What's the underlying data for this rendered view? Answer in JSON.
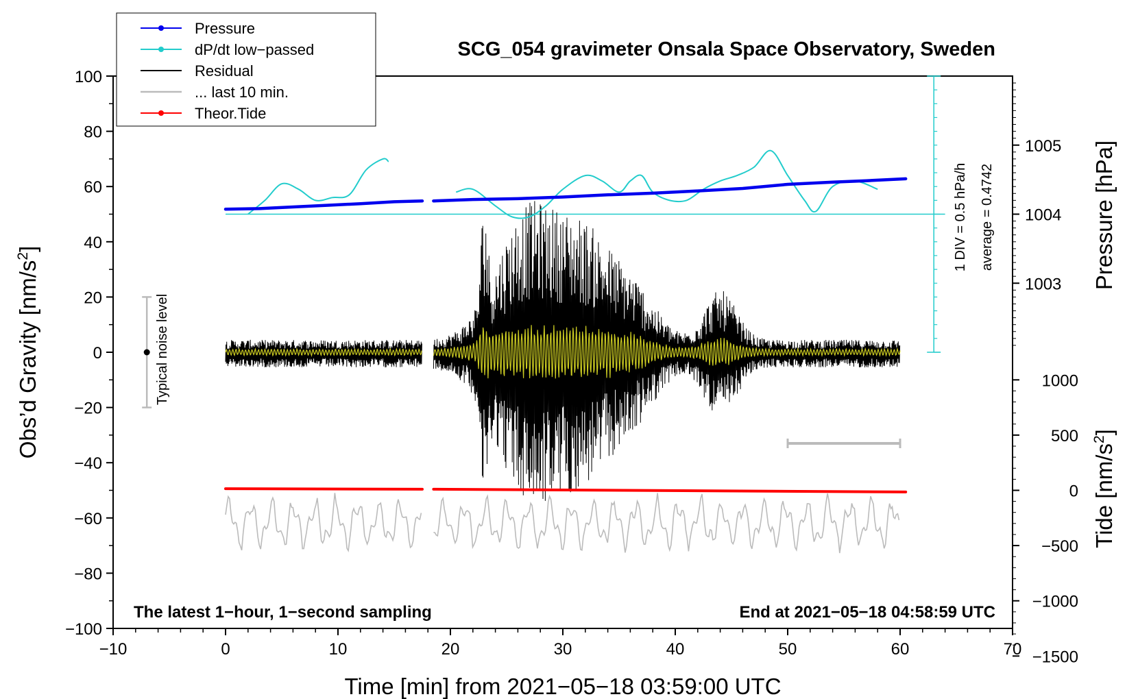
{
  "colors": {
    "pressure": "#0000ee",
    "dpdt": "#22cccc",
    "residual": "#000000",
    "last10": "#bbbbbb",
    "tide": "#ff0000",
    "smoothed": "#cccc22",
    "noise_bar": "#bbbbbb"
  },
  "chart_data": {
    "type": "line",
    "title": "SCG_054 gravimeter Onsala Space Observatory, Sweden",
    "xlabel": "Time [min] from 2021−05−18 03:59:00 UTC",
    "ylabel": "Obs’d Gravity [nm/s",
    "ylabel_sup": "2",
    "ylabel_end": "]",
    "right_top_label": "Pressure [hPa]",
    "right_bottom_label": "Tide [nm/s",
    "right_bottom_label_sup": "2",
    "right_bottom_label_end": "]",
    "xlim": [
      -10,
      70
    ],
    "ylim": [
      -100,
      100
    ],
    "x_ticks": [
      -10,
      0,
      10,
      20,
      30,
      40,
      50,
      60,
      70
    ],
    "x_tick_labels": [
      "−10",
      "0",
      "10",
      "20",
      "30",
      "40",
      "50",
      "60",
      "70"
    ],
    "y_ticks": [
      -100,
      -80,
      -60,
      -40,
      -20,
      0,
      20,
      40,
      60,
      80,
      100
    ],
    "y_tick_labels": [
      "−100",
      "−80",
      "−60",
      "−40",
      "−20",
      "0",
      "20",
      "40",
      "60",
      "80",
      "100"
    ],
    "pressure_axis": {
      "ticks": [
        1003,
        1004,
        1005
      ],
      "tick_labels": [
        "1003",
        "1004",
        "1005"
      ],
      "gravity_at_1004": 50,
      "gravity_per_hpa": 25
    },
    "tide_axis": {
      "ticks": [
        -1500,
        -1000,
        -500,
        0,
        500,
        1000
      ],
      "tick_labels": [
        "−1500",
        "−1000",
        "−500",
        "0",
        "500",
        "1000"
      ],
      "gravity_at_zero": -50,
      "gravity_per_unit": 0.04
    },
    "legend": [
      {
        "label": "Pressure",
        "series": "pressure",
        "marker": true
      },
      {
        "label": "dP/dt low−passed",
        "series": "dpdt",
        "marker": true
      },
      {
        "label": "Residual",
        "series": "residual",
        "marker": false
      },
      {
        "label": "... last 10 min.",
        "series": "last10",
        "marker": false
      },
      {
        "label": "Theor.Tide",
        "series": "tide",
        "marker": true
      }
    ],
    "annotations": {
      "noise_label": "Typical noise level",
      "noise_range": [
        -20,
        20
      ],
      "noise_x": -7,
      "div_label": "1 DIV = 0.5 hPa/h",
      "average_label": "average = 0.4742",
      "bottom_left": "The latest 1−hour, 1−second sampling",
      "bottom_right": "End at 2021−05−18 04:58:59 UTC",
      "scale_bar_x": [
        50,
        60
      ],
      "scale_bar_y": -33,
      "dpdt_baseline_y": 50,
      "dpdt_axis_x": 63,
      "dpdt_axis_range": [
        0,
        100
      ]
    },
    "series": [
      {
        "name": "Pressure",
        "segments": [
          {
            "x": [
              0,
              3,
              6,
              9,
              12,
              15,
              17.5
            ],
            "y": [
              51.8,
              52.0,
              52.6,
              53.2,
              53.8,
              54.5,
              54.8
            ]
          },
          {
            "x": [
              18.5,
              22,
              26,
              30,
              34,
              38,
              42,
              46,
              50,
              54,
              57,
              60.5
            ],
            "y": [
              54.8,
              55.3,
              55.6,
              56.2,
              57.0,
              57.6,
              58.4,
              59.3,
              60.8,
              61.6,
              62.1,
              62.8
            ]
          }
        ]
      },
      {
        "name": "dP/dt low-passed",
        "segments": [
          {
            "x": [
              2,
              3.5,
              5,
              6.5,
              8,
              9.5,
              11,
              12.5,
              14,
              14.5
            ],
            "y": [
              50,
              55,
              61,
              59,
              55,
              56,
              57,
              66,
              70,
              69
            ]
          },
          {
            "x": [
              20.5,
              22,
              24,
              25.5,
              27,
              28.5,
              30,
              32,
              33.5,
              35,
              36,
              37,
              38,
              39.5,
              41,
              42.5,
              44,
              45.5,
              47,
              48.5,
              50,
              51.5,
              52.5,
              54,
              56,
              58
            ],
            "y": [
              58,
              59,
              53,
              49,
              49,
              53,
              59,
              64,
              62,
              58,
              62,
              64,
              58,
              55,
              55,
              59,
              62,
              64,
              67,
              73,
              64,
              55,
              51,
              60,
              62,
              59
            ]
          }
        ]
      },
      {
        "name": "Theor.Tide",
        "segments": [
          {
            "x": [
              0,
              17.5
            ],
            "y": [
              -49.4,
              -49.6
            ]
          },
          {
            "x": [
              18.5,
              60.5
            ],
            "y": [
              -49.6,
              -50.6
            ]
          }
        ]
      }
    ],
    "residual_summary": {
      "description": "1-second residual, approx. ±5 nm/s2 baseline, earthquake surface waves 23–38 min (peaks ≈50 at ~27 min), second burst near 44 min",
      "gap": [
        17.5,
        18.5
      ],
      "x_end": 60,
      "background_amplitude": 5,
      "bursts": [
        {
          "center": 27,
          "width": 4,
          "amplitude": 48
        },
        {
          "center": 32,
          "width": 3,
          "amplitude": 30
        },
        {
          "center": 36,
          "width": 3,
          "amplitude": 20
        },
        {
          "center": 44,
          "width": 2,
          "amplitude": 18
        },
        {
          "center": 23,
          "width": 0.4,
          "amplitude": 35
        }
      ]
    },
    "last10_summary": {
      "baseline": -62,
      "amplitude": 10
    }
  }
}
